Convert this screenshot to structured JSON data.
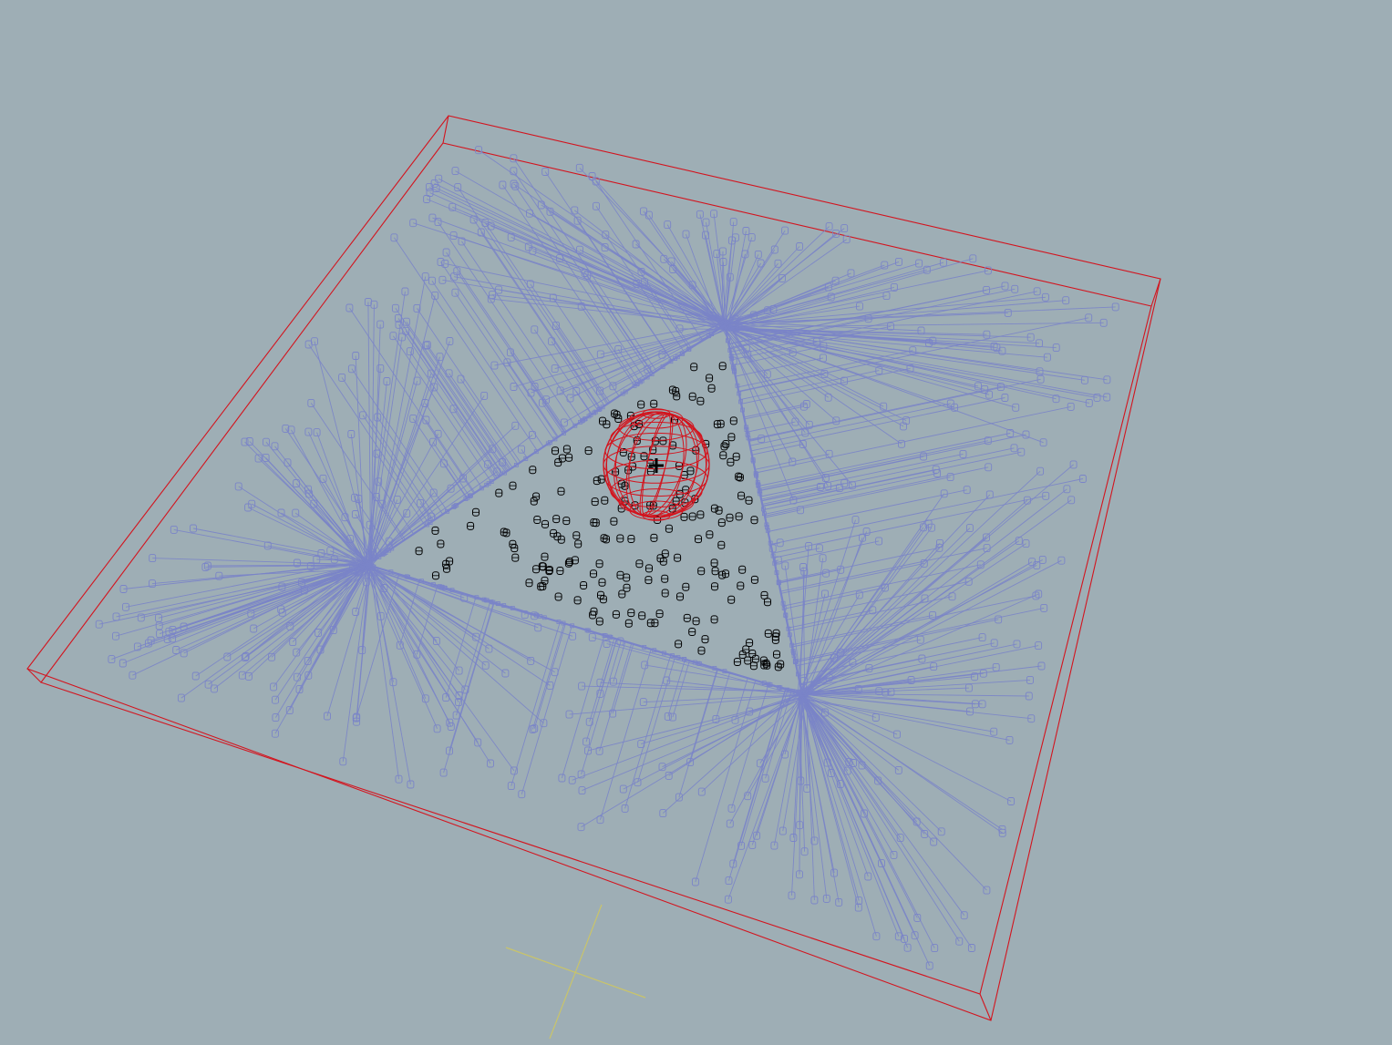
{
  "viewport": {
    "view": "perspective",
    "background_color": "#9eaeb5"
  },
  "scene": {
    "bounding_box_color": "#d3141e",
    "ray_color": "#7a84c8",
    "object_color": "#7a84c8",
    "inner_object_color": "#000000",
    "sphere_color": "#d3141e",
    "grid_axis_color": "#c9c46a",
    "ray_hub_count": 3,
    "inner_objects_visible": true,
    "sphere_wireframe": true
  }
}
